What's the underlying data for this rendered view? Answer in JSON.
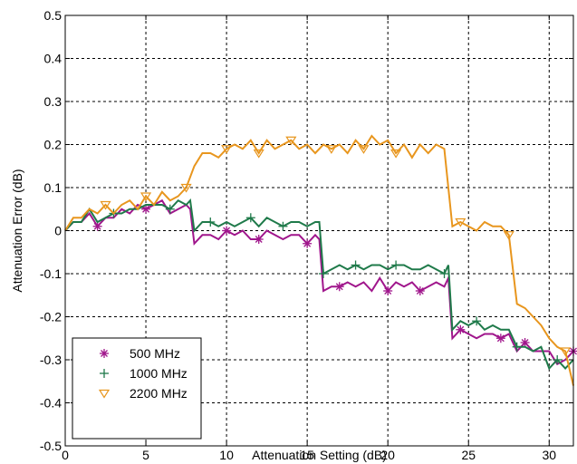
{
  "chart_data": {
    "type": "line",
    "title": "",
    "xlabel": "Attenuation Setting (dB)",
    "ylabel": "Attenuation Error (dB)",
    "xlim": [
      0,
      31.5
    ],
    "ylim": [
      -0.5,
      0.5
    ],
    "xticks": [
      0,
      5,
      10,
      15,
      20,
      25,
      30
    ],
    "xtick_labels": [
      "0",
      "5",
      "10",
      "15",
      "20",
      "25",
      "30"
    ],
    "yticks": [
      -0.5,
      -0.4,
      -0.3,
      -0.2,
      -0.1,
      0,
      0.1,
      0.2,
      0.3,
      0.4,
      0.5
    ],
    "ytick_labels": [
      "-0.5",
      "-0.4",
      "-0.3",
      "-0.2",
      "-0.1",
      "0",
      "0.1",
      "0.2",
      "0.3",
      "0.4",
      "0.5"
    ],
    "grid": true,
    "legend_position": "bottom-left",
    "series": [
      {
        "name": "500 MHz",
        "color": "#a0168c",
        "marker": "asterisk",
        "x": [
          0,
          0.5,
          1,
          1.5,
          2,
          2.5,
          3,
          3.5,
          4,
          4.5,
          5,
          5.5,
          6,
          6.5,
          7,
          7.5,
          7.75,
          8,
          8.5,
          9,
          9.5,
          10,
          10.5,
          11,
          11.5,
          12,
          12.5,
          13,
          13.5,
          14,
          14.5,
          15,
          15.5,
          15.75,
          16,
          16.5,
          17,
          17.5,
          18,
          18.5,
          19,
          19.5,
          20,
          20.5,
          21,
          21.5,
          22,
          22.5,
          23,
          23.5,
          23.75,
          24,
          24.5,
          25,
          25.5,
          26,
          26.5,
          27,
          27.5,
          28,
          28.5,
          29,
          29.5,
          30,
          30.5,
          31,
          31.5
        ],
        "y": [
          0,
          0.02,
          0.02,
          0.04,
          0.01,
          0.03,
          0.03,
          0.05,
          0.04,
          0.06,
          0.05,
          0.06,
          0.07,
          0.04,
          0.05,
          0.06,
          0.05,
          -0.03,
          -0.01,
          -0.01,
          -0.02,
          0.0,
          -0.01,
          0.0,
          -0.02,
          -0.02,
          0.0,
          -0.01,
          -0.02,
          -0.01,
          -0.01,
          -0.03,
          -0.01,
          -0.02,
          -0.14,
          -0.13,
          -0.13,
          -0.12,
          -0.13,
          -0.12,
          -0.14,
          -0.11,
          -0.14,
          -0.12,
          -0.13,
          -0.12,
          -0.14,
          -0.13,
          -0.12,
          -0.13,
          -0.11,
          -0.25,
          -0.23,
          -0.24,
          -0.25,
          -0.24,
          -0.24,
          -0.25,
          -0.24,
          -0.28,
          -0.26,
          -0.28,
          -0.28,
          -0.28,
          -0.31,
          -0.3,
          -0.28
        ]
      },
      {
        "name": "1000 MHz",
        "color": "#1f7a4a",
        "marker": "plus",
        "x": [
          0,
          0.5,
          1,
          1.5,
          2,
          2.5,
          3,
          3.5,
          4,
          4.5,
          5,
          5.5,
          6,
          6.5,
          7,
          7.5,
          7.75,
          8,
          8.5,
          9,
          9.5,
          10,
          10.5,
          11,
          11.5,
          12,
          12.5,
          13,
          13.5,
          14,
          14.5,
          15,
          15.5,
          15.75,
          16,
          16.5,
          17,
          17.5,
          18,
          18.5,
          19,
          19.5,
          20,
          20.5,
          21,
          21.5,
          22,
          22.5,
          23,
          23.5,
          23.75,
          24,
          24.5,
          25,
          25.5,
          26,
          26.5,
          27,
          27.5,
          28,
          28.5,
          29,
          29.5,
          30,
          30.5,
          31,
          31.5
        ],
        "y": [
          0,
          0.02,
          0.02,
          0.05,
          0.02,
          0.03,
          0.04,
          0.04,
          0.05,
          0.05,
          0.06,
          0.06,
          0.06,
          0.05,
          0.07,
          0.06,
          0.07,
          0.0,
          0.02,
          0.02,
          0.01,
          0.02,
          0.01,
          0.02,
          0.03,
          0.01,
          0.03,
          0.02,
          0.01,
          0.02,
          0.02,
          0.01,
          0.02,
          0.02,
          -0.1,
          -0.09,
          -0.08,
          -0.09,
          -0.08,
          -0.09,
          -0.08,
          -0.08,
          -0.09,
          -0.08,
          -0.08,
          -0.09,
          -0.09,
          -0.08,
          -0.09,
          -0.1,
          -0.08,
          -0.23,
          -0.21,
          -0.22,
          -0.21,
          -0.23,
          -0.22,
          -0.23,
          -0.23,
          -0.27,
          -0.27,
          -0.28,
          -0.27,
          -0.32,
          -0.3,
          -0.32,
          -0.3
        ]
      },
      {
        "name": "2200 MHz",
        "color": "#e8961e",
        "marker": "triangle-down",
        "x": [
          0,
          0.5,
          1,
          1.5,
          2,
          2.5,
          3,
          3.5,
          4,
          4.5,
          5,
          5.5,
          6,
          6.5,
          7,
          7.5,
          8,
          8.5,
          9,
          9.5,
          10,
          10.5,
          11,
          11.5,
          12,
          12.5,
          13,
          13.5,
          14,
          14.5,
          15,
          15.5,
          16,
          16.5,
          17,
          17.5,
          18,
          18.5,
          19,
          19.5,
          20,
          20.5,
          21,
          21.5,
          22,
          22.5,
          23,
          23.5,
          24,
          24.5,
          25,
          25.5,
          26,
          26.5,
          27,
          27.5,
          28,
          28.5,
          29,
          29.5,
          30,
          30.5,
          31,
          31.5
        ],
        "y": [
          0,
          0.03,
          0.03,
          0.05,
          0.04,
          0.06,
          0.04,
          0.06,
          0.07,
          0.05,
          0.08,
          0.06,
          0.09,
          0.07,
          0.08,
          0.1,
          0.15,
          0.18,
          0.18,
          0.17,
          0.19,
          0.2,
          0.19,
          0.21,
          0.18,
          0.21,
          0.19,
          0.2,
          0.21,
          0.19,
          0.2,
          0.18,
          0.2,
          0.19,
          0.2,
          0.18,
          0.21,
          0.19,
          0.22,
          0.2,
          0.21,
          0.18,
          0.2,
          0.17,
          0.2,
          0.18,
          0.2,
          0.19,
          0.01,
          0.02,
          0.01,
          0.0,
          0.02,
          0.01,
          0.01,
          -0.01,
          -0.17,
          -0.18,
          -0.2,
          -0.22,
          -0.25,
          -0.27,
          -0.28,
          -0.36
        ]
      }
    ],
    "annotated_markers": [
      {
        "series": 0,
        "x": [
          2,
          5,
          10,
          12,
          15,
          17,
          20,
          22,
          24.5,
          27,
          28.5,
          31.5
        ]
      },
      {
        "series": 1,
        "x": [
          3,
          6.5,
          9,
          11.5,
          13.5,
          16,
          18,
          20.5,
          23.5,
          25.5,
          28,
          30.5
        ]
      },
      {
        "series": 2,
        "x": [
          2.5,
          5,
          7.5,
          10,
          12,
          14,
          16.5,
          18.5,
          20.5,
          24.5,
          27.5,
          31
        ]
      }
    ]
  }
}
